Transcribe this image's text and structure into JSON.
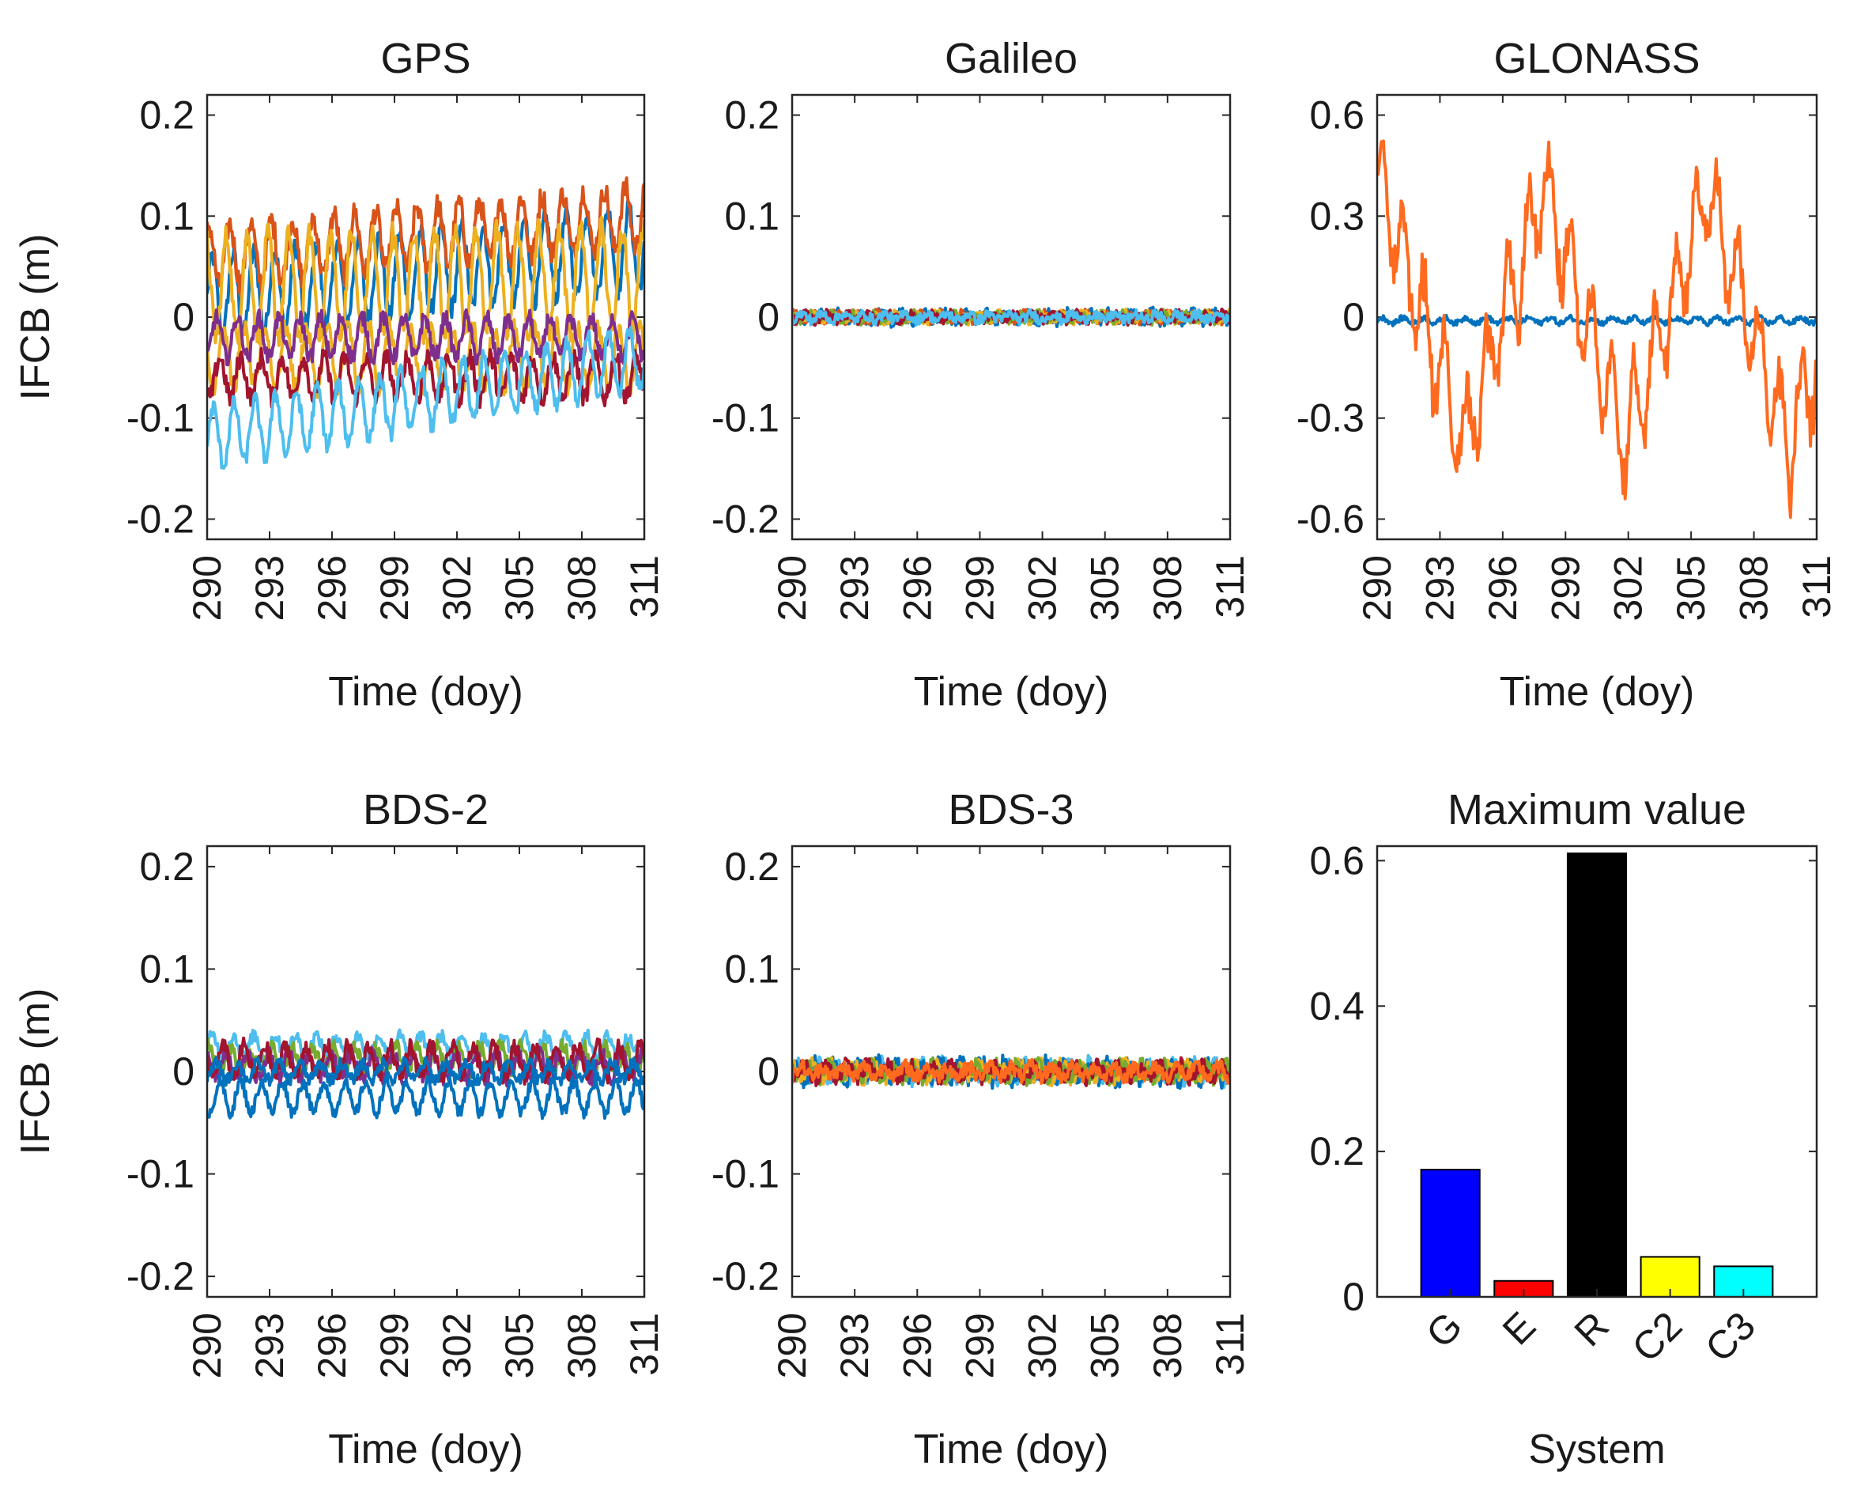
{
  "chart_data": [
    {
      "type": "line",
      "title": "GPS",
      "xlabel": "Time (doy)",
      "ylabel": "IFCB (m)",
      "xlim": [
        290,
        311
      ],
      "ylim": [
        -0.22,
        0.22
      ],
      "xticks": [
        290,
        293,
        296,
        299,
        302,
        305,
        308,
        311
      ],
      "yticks": [
        -0.2,
        -0.1,
        0,
        0.1,
        0.2
      ],
      "ytick_labels": [
        "-0.2",
        "-0.1",
        "0",
        "0.1",
        "0.2"
      ],
      "grid": false,
      "series": [
        {
          "color": "#0072BD",
          "base": 0.02,
          "trend": 0.05,
          "amp": 0.04,
          "noise": 0.01
        },
        {
          "color": "#D95319",
          "base": 0.06,
          "trend": 0.04,
          "amp": 0.03,
          "noise": 0.012
        },
        {
          "color": "#EDB120",
          "base": 0.03,
          "trend": 0.01,
          "amp": 0.05,
          "noise": 0.012
        },
        {
          "color": "#EDB120",
          "base": -0.04,
          "trend": 0.0,
          "amp": 0.03,
          "noise": 0.01
        },
        {
          "color": "#A2142F",
          "base": -0.06,
          "trend": 0.0,
          "amp": 0.02,
          "noise": 0.01
        },
        {
          "color": "#7E2F8E",
          "base": -0.02,
          "trend": 0.0,
          "amp": 0.02,
          "noise": 0.008
        },
        {
          "color": "#4DBEEE",
          "base": -0.12,
          "trend": 0.08,
          "amp": 0.03,
          "noise": 0.008
        }
      ]
    },
    {
      "type": "line",
      "title": "Galileo",
      "xlabel": "Time (doy)",
      "ylabel": "",
      "xlim": [
        290,
        311
      ],
      "ylim": [
        -0.22,
        0.22
      ],
      "xticks": [
        290,
        293,
        296,
        299,
        302,
        305,
        308,
        311
      ],
      "yticks": [
        -0.2,
        -0.1,
        0,
        0.1,
        0.2
      ],
      "ytick_labels": [
        "-0.2",
        "-0.1",
        "0",
        "0.1",
        "0.2"
      ],
      "grid": false,
      "series": [
        {
          "color": "#0072BD",
          "base": 0.0,
          "trend": 0.0,
          "amp": 0.004,
          "noise": 0.006
        },
        {
          "color": "#D95319",
          "base": 0.0,
          "trend": 0.0,
          "amp": 0.003,
          "noise": 0.005
        },
        {
          "color": "#EDB120",
          "base": 0.0,
          "trend": 0.0,
          "amp": 0.003,
          "noise": 0.005
        },
        {
          "color": "#77AC30",
          "base": 0.0,
          "trend": 0.0,
          "amp": 0.003,
          "noise": 0.005
        },
        {
          "color": "#A2142F",
          "base": 0.0,
          "trend": 0.0,
          "amp": 0.003,
          "noise": 0.005
        },
        {
          "color": "#4DBEEE",
          "base": 0.0,
          "trend": 0.0,
          "amp": 0.003,
          "noise": 0.005
        }
      ]
    },
    {
      "type": "line",
      "title": "GLONASS",
      "xlabel": "Time (doy)",
      "ylabel": "",
      "xlim": [
        290,
        311
      ],
      "ylim": [
        -0.66,
        0.66
      ],
      "xticks": [
        290,
        293,
        296,
        299,
        302,
        305,
        308,
        311
      ],
      "yticks": [
        -0.6,
        -0.3,
        0,
        0.3,
        0.6
      ],
      "ytick_labels": [
        "-0.6",
        "-0.3",
        "0",
        "0.3",
        "0.6"
      ],
      "grid": false,
      "series": [
        {
          "color": "#0072BD",
          "base": -0.01,
          "trend": 0.0,
          "amp": 0.008,
          "noise": 0.008
        },
        {
          "color": "#FF6A1E",
          "period": 7.8,
          "phase": 290.2,
          "wave": 0.38,
          "amp": 0.14,
          "noise": 0.05
        }
      ]
    },
    {
      "type": "line",
      "title": "BDS-2",
      "xlabel": "Time (doy)",
      "ylabel": "IFCB (m)",
      "xlim": [
        290,
        311
      ],
      "ylim": [
        -0.22,
        0.22
      ],
      "xticks": [
        290,
        293,
        296,
        299,
        302,
        305,
        308,
        311
      ],
      "yticks": [
        -0.2,
        -0.1,
        0,
        0.1,
        0.2
      ],
      "ytick_labels": [
        "-0.2",
        "-0.1",
        "0",
        "0.1",
        "0.2"
      ],
      "grid": false,
      "series": [
        {
          "color": "#4DBEEE",
          "base": 0.025,
          "trend": 0.0,
          "amp": 0.01,
          "noise": 0.006
        },
        {
          "color": "#77AC30",
          "base": 0.012,
          "trend": 0.0,
          "amp": 0.012,
          "noise": 0.008
        },
        {
          "color": "#7E2F8E",
          "base": 0.005,
          "trend": 0.0,
          "amp": 0.012,
          "noise": 0.008
        },
        {
          "color": "#A2142F",
          "base": 0.01,
          "trend": 0.0,
          "amp": 0.015,
          "noise": 0.008
        },
        {
          "color": "#0072BD",
          "base": -0.025,
          "trend": 0.0,
          "amp": 0.015,
          "noise": 0.006
        },
        {
          "color": "#0072BD",
          "base": 0.0,
          "trend": 0.0,
          "amp": 0.008,
          "noise": 0.006
        }
      ]
    },
    {
      "type": "line",
      "title": "BDS-3",
      "xlabel": "Time (doy)",
      "ylabel": "",
      "xlim": [
        290,
        311
      ],
      "ylim": [
        -0.22,
        0.22
      ],
      "xticks": [
        290,
        293,
        296,
        299,
        302,
        305,
        308,
        311
      ],
      "yticks": [
        -0.2,
        -0.1,
        0,
        0.1,
        0.2
      ],
      "ytick_labels": [
        "-0.2",
        "-0.1",
        "0",
        "0.1",
        "0.2"
      ],
      "grid": false,
      "series": [
        {
          "color": "#4DBEEE",
          "base": 0.0,
          "trend": 0.0,
          "amp": 0.008,
          "noise": 0.008
        },
        {
          "color": "#0072BD",
          "base": 0.0,
          "trend": 0.0,
          "amp": 0.008,
          "noise": 0.009
        },
        {
          "color": "#EDB120",
          "base": 0.0,
          "trend": 0.0,
          "amp": 0.006,
          "noise": 0.008
        },
        {
          "color": "#77AC30",
          "base": 0.0,
          "trend": 0.0,
          "amp": 0.006,
          "noise": 0.008
        },
        {
          "color": "#A2142F",
          "base": 0.0,
          "trend": 0.0,
          "amp": 0.006,
          "noise": 0.008
        },
        {
          "color": "#FF6A1E",
          "base": 0.0,
          "trend": 0.0,
          "amp": 0.005,
          "noise": 0.007
        }
      ]
    },
    {
      "type": "bar",
      "title": "Maximum value",
      "xlabel": "System",
      "ylabel": "",
      "categories": [
        "G",
        "E",
        "R",
        "C2",
        "C3"
      ],
      "values": [
        0.175,
        0.022,
        0.61,
        0.055,
        0.042
      ],
      "colors": [
        "#0000FF",
        "#FF0000",
        "#000000",
        "#FFFF00",
        "#00FFFF"
      ],
      "ylim": [
        0,
        0.62
      ],
      "yticks": [
        0,
        0.2,
        0.4,
        0.6
      ],
      "ytick_labels": [
        "0",
        "0.2",
        "0.4",
        "0.6"
      ],
      "grid": false
    }
  ]
}
